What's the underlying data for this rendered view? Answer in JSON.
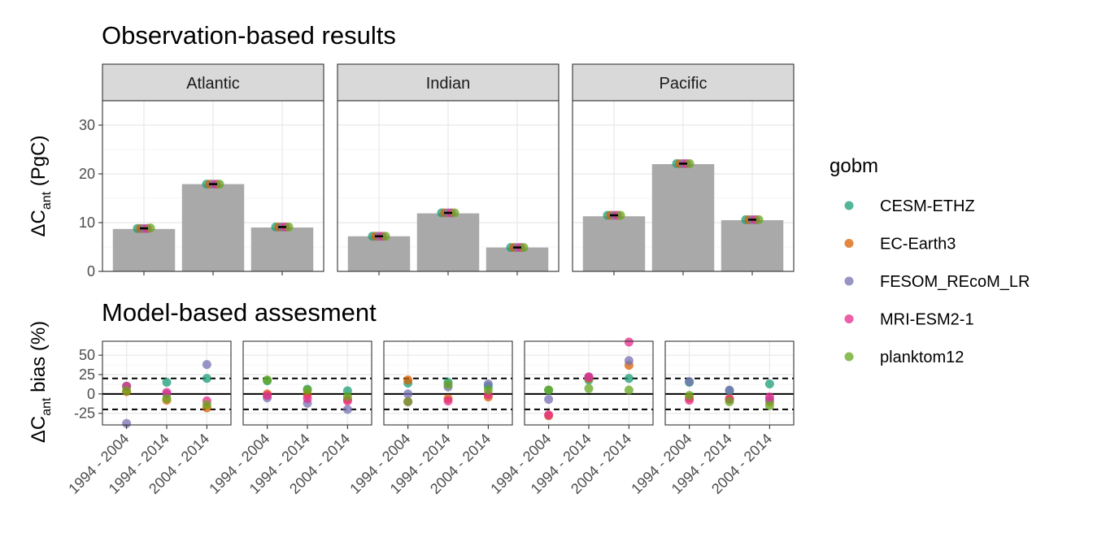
{
  "chart_data": [
    {
      "type": "bar",
      "title": "Observation-based results",
      "ylabel": "ΔC_ant (PgC)",
      "ylabel_parts": {
        "pre": "ΔC",
        "sub": "ant",
        "post": " (PgC)"
      },
      "ylim": [
        0,
        35
      ],
      "yticks": [
        0,
        10,
        20,
        30
      ],
      "categories": [
        "1994 - 2004",
        "1994 - 2014",
        "2004 - 2014"
      ],
      "grid": true,
      "facets": [
        {
          "name": "Atlantic",
          "bars": [
            8.7,
            17.9,
            9.0
          ],
          "points": [
            [
              8.8,
              8.8,
              8.8,
              8.8,
              8.9
            ],
            [
              17.9,
              17.9,
              17.9,
              17.9,
              17.9
            ],
            [
              9.1,
              9.1,
              9.1,
              9.1,
              9.1
            ]
          ]
        },
        {
          "name": "Indian",
          "bars": [
            7.2,
            11.9,
            4.9
          ],
          "points": [
            [
              7.2,
              7.2,
              7.2,
              7.2,
              7.2
            ],
            [
              12.0,
              12.0,
              12.0,
              12.0,
              12.0
            ],
            [
              4.9,
              4.9,
              4.9,
              4.9,
              4.9
            ]
          ]
        },
        {
          "name": "Pacific",
          "bars": [
            11.3,
            22.0,
            10.5
          ],
          "points": [
            [
              11.5,
              11.5,
              11.5,
              11.5,
              11.5
            ],
            [
              22.1,
              22.1,
              22.1,
              22.1,
              22.1
            ],
            [
              10.6,
              10.6,
              10.6,
              10.6,
              10.6
            ]
          ]
        }
      ]
    },
    {
      "type": "scatter",
      "title": "Model-based assesment",
      "ylabel": "ΔC_ant bias (%)",
      "ylabel_parts": {
        "pre": "ΔC",
        "sub": "ant",
        "post": " bias (%)"
      },
      "ylim": [
        -40,
        68
      ],
      "yticks": [
        -25,
        0,
        25,
        50
      ],
      "hlines": {
        "solid": [
          0
        ],
        "dashed": [
          -20,
          20
        ]
      },
      "categories": [
        "1994 - 2004",
        "1994 - 2014",
        "2004 - 2014"
      ],
      "grid": true,
      "panels": [
        {
          "values": [
            [
              10,
              3,
              -38,
              10,
              4
            ],
            [
              15,
              -8,
              0,
              2,
              -6
            ],
            [
              20,
              -18,
              38,
              -9,
              -14
            ]
          ]
        },
        {
          "values": [
            [
              17,
              0,
              -5,
              -2,
              18
            ],
            [
              6,
              -1,
              -12,
              -6,
              5
            ],
            [
              4,
              -7,
              -20,
              -9,
              -3
            ]
          ]
        },
        {
          "values": [
            [
              14,
              18,
              0,
              -10,
              -10
            ],
            [
              15,
              -6,
              9,
              -9,
              12
            ],
            [
              10,
              -4,
              13,
              -1,
              5
            ]
          ]
        },
        {
          "values": [
            [
              5,
              -28,
              -7,
              -27,
              5
            ],
            [
              18,
              20,
              22,
              22,
              7
            ],
            [
              20,
              37,
              43,
              67,
              5
            ]
          ]
        },
        {
          "values": [
            [
              15,
              -5,
              16,
              -8,
              -2
            ],
            [
              4,
              -6,
              5,
              -7,
              -10
            ],
            [
              13,
              -10,
              -7,
              -4,
              -15
            ]
          ]
        }
      ]
    }
  ],
  "legend": {
    "title": "gobm",
    "position": "right",
    "items": [
      {
        "label": "CESM-ETHZ",
        "color": "#1b9e77"
      },
      {
        "label": "EC-Earth3",
        "color": "#d95f02"
      },
      {
        "label": "FESOM_REcoM_LR",
        "color": "#7570b3"
      },
      {
        "label": "MRI-ESM2-1",
        "color": "#e7298a"
      },
      {
        "label": "planktom12",
        "color": "#66a61e"
      }
    ]
  },
  "colors": {
    "bar": "#a9a9a9",
    "strip_bg": "#d9d9d9",
    "grid": "#ebebeb"
  }
}
